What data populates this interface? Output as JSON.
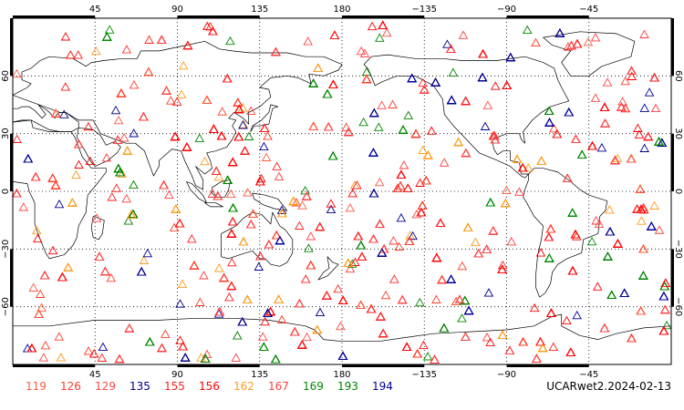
{
  "map": {
    "projection": "equirectangular",
    "lon_range": [
      0,
      360
    ],
    "lat_range": [
      -90,
      90
    ],
    "grid": "dotted",
    "top_ticks": [
      {
        "lon": 45,
        "label": "45"
      },
      {
        "lon": 90,
        "label": "90"
      },
      {
        "lon": 135,
        "label": "135"
      },
      {
        "lon": 180,
        "label": "180"
      },
      {
        "lon": 225,
        "label": "−135"
      },
      {
        "lon": 270,
        "label": "−90"
      },
      {
        "lon": 315,
        "label": "−45"
      }
    ],
    "bottom_ticks": [
      {
        "lon": 45,
        "label": "45"
      },
      {
        "lon": 90,
        "label": "90"
      },
      {
        "lon": 135,
        "label": "135"
      },
      {
        "lon": 180,
        "label": "180"
      },
      {
        "lon": 225,
        "label": "−135"
      },
      {
        "lon": 270,
        "label": "−90"
      },
      {
        "lon": 315,
        "label": "−45"
      }
    ],
    "left_ticks": [
      {
        "lat": 60,
        "label": "60"
      },
      {
        "lat": 30,
        "label": "30"
      },
      {
        "lat": 0,
        "label": "0"
      },
      {
        "lat": -30,
        "label": "−30"
      },
      {
        "lat": -60,
        "label": "−60"
      }
    ],
    "right_ticks": [
      {
        "lat": 60,
        "label": "60"
      },
      {
        "lat": 30,
        "label": "30"
      },
      {
        "lat": 0,
        "label": "0"
      },
      {
        "lat": -30,
        "label": "−30"
      },
      {
        "lat": -60,
        "label": "−60"
      }
    ],
    "marker": "open-triangle",
    "land_outline_color": "#000000"
  },
  "legend": {
    "items": [
      {
        "label": "119",
        "color": "#ff5a3c"
      },
      {
        "label": "126",
        "color": "#ff3c28"
      },
      {
        "label": "129",
        "color": "#ff4646"
      },
      {
        "label": "135",
        "color": "#00008c"
      },
      {
        "label": "155",
        "color": "#ff1e1e"
      },
      {
        "label": "156",
        "color": "#ff0000"
      },
      {
        "label": "162",
        "color": "#ff9b1e"
      },
      {
        "label": "167",
        "color": "#ff3c3c"
      },
      {
        "label": "169",
        "color": "#008c00"
      },
      {
        "label": "193",
        "color": "#008200"
      },
      {
        "label": "194",
        "color": "#00009b"
      }
    ]
  },
  "footer": {
    "label": "UCARwet2.2024-02-13"
  }
}
